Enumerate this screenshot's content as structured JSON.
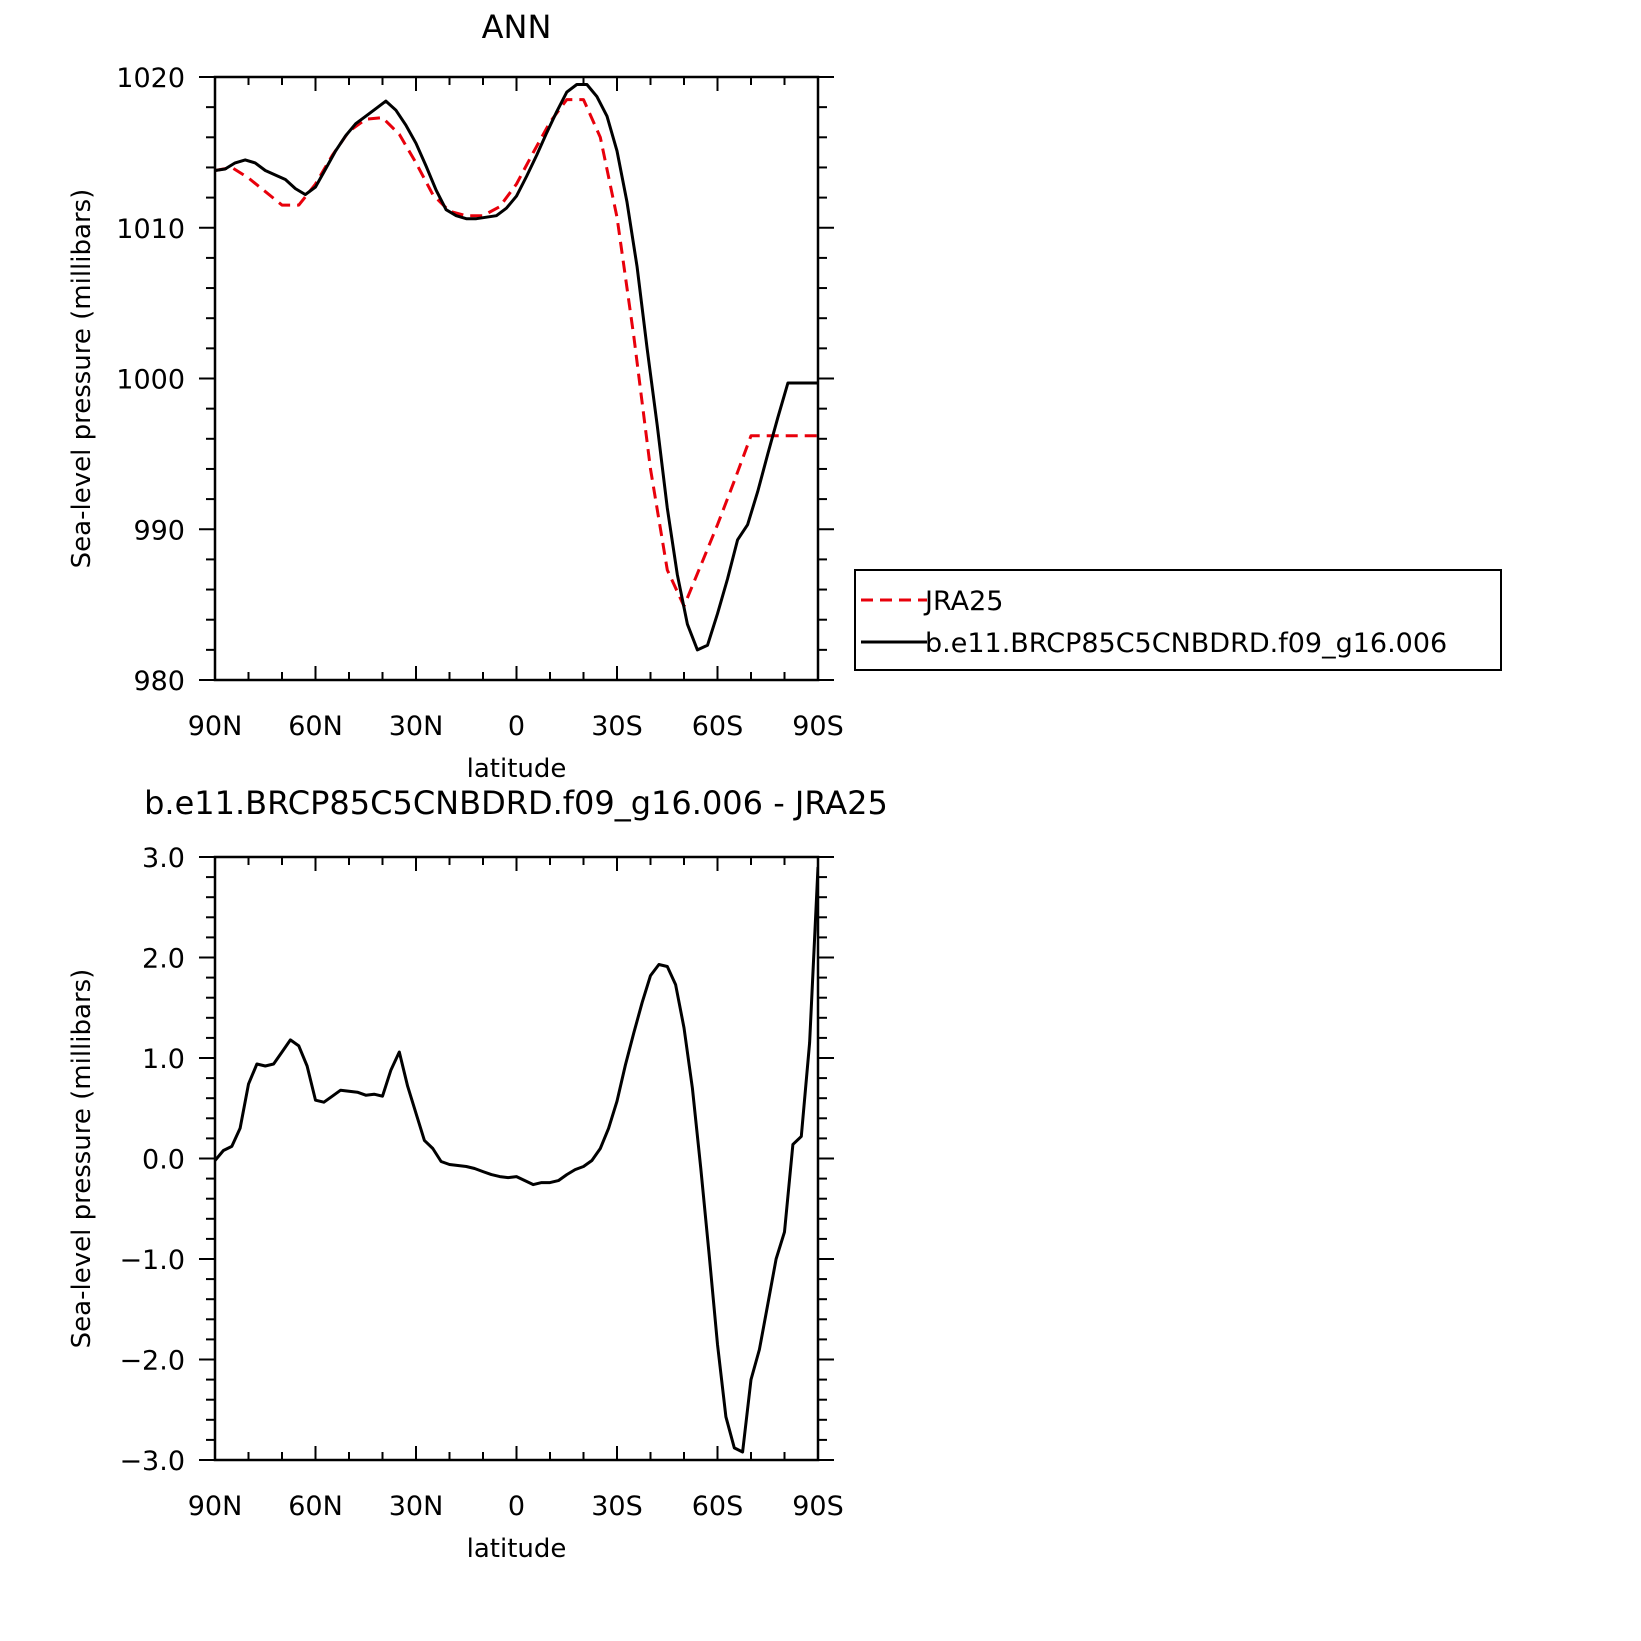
{
  "chart_data": [
    {
      "type": "line",
      "title": "ANN",
      "xlabel": "latitude",
      "ylabel": "Sea-level pressure (millibars)",
      "xlim": [
        90,
        -90
      ],
      "ylim": [
        980,
        1020
      ],
      "x_ticks": [
        {
          "value": 90,
          "label": "90N"
        },
        {
          "value": 60,
          "label": "60N"
        },
        {
          "value": 30,
          "label": "30N"
        },
        {
          "value": 0,
          "label": "0"
        },
        {
          "value": -30,
          "label": "30S"
        },
        {
          "value": -60,
          "label": "60S"
        },
        {
          "value": -90,
          "label": "90S"
        }
      ],
      "y_ticks": [
        {
          "value": 1020,
          "label": "1020"
        },
        {
          "value": 1010,
          "label": "1010"
        },
        {
          "value": 1000,
          "label": "1000"
        },
        {
          "value": 990,
          "label": "990"
        },
        {
          "value": 980,
          "label": "980"
        }
      ],
      "legend_position": "right",
      "series": [
        {
          "name": "JRA25",
          "color": "#e8000b",
          "dash": "dashed",
          "x": [
            90,
            85,
            80,
            75,
            70,
            65,
            60,
            55,
            50,
            45,
            40,
            35,
            30,
            25,
            20,
            15,
            10,
            5,
            0,
            -5,
            -10,
            -15,
            -20,
            -25,
            -30,
            -35,
            -40,
            -45,
            -50,
            -55,
            -60,
            -65,
            -70,
            -75,
            -80,
            -85,
            -90
          ],
          "y": [
            1013.8,
            1014.0,
            1013.3,
            1012.4,
            1011.5,
            1011.5,
            1012.9,
            1014.8,
            1016.4,
            1017.2,
            1017.3,
            1016.2,
            1014.3,
            1012.2,
            1011.1,
            1010.8,
            1010.8,
            1011.4,
            1012.9,
            1015.0,
            1017.0,
            1018.5,
            1018.5,
            1016.0,
            1010.7,
            1002.8,
            994.0,
            987.3,
            984.9,
            987.6,
            990.3,
            993.2,
            996.2,
            996.2,
            996.2,
            996.2,
            996.2
          ]
        },
        {
          "name": "b.e11.BRCP85C5CNBDRD.f09_g16.006",
          "color": "#000000",
          "dash": "solid",
          "x": [
            90,
            87,
            84,
            81,
            78,
            75,
            72,
            69,
            66,
            63,
            60,
            57,
            54,
            51,
            48,
            45,
            42,
            39,
            36,
            33,
            30,
            27,
            24,
            21,
            18,
            15,
            12,
            9,
            6,
            3,
            0,
            -3,
            -6,
            -9,
            -12,
            -15,
            -18,
            -21,
            -24,
            -27,
            -30,
            -33,
            -36,
            -39,
            -42,
            -45,
            -48,
            -51,
            -54,
            -57,
            -60,
            -63,
            -66,
            -69,
            -72,
            -75,
            -78,
            -81,
            -84,
            -87,
            -90
          ],
          "y": [
            1013.8,
            1013.9,
            1014.3,
            1014.5,
            1014.3,
            1013.8,
            1013.5,
            1013.2,
            1012.6,
            1012.2,
            1012.7,
            1013.9,
            1015.1,
            1016.1,
            1016.9,
            1017.4,
            1017.9,
            1018.4,
            1017.8,
            1016.8,
            1015.6,
            1014.1,
            1012.5,
            1011.2,
            1010.8,
            1010.6,
            1010.6,
            1010.7,
            1010.8,
            1011.3,
            1012.1,
            1013.4,
            1014.8,
            1016.3,
            1017.7,
            1019.0,
            1019.5,
            1019.5,
            1018.7,
            1017.4,
            1015.1,
            1011.7,
            1007.4,
            1002.0,
            996.9,
            991.4,
            987.0,
            983.7,
            982.0,
            982.3,
            984.4,
            986.7,
            989.3,
            990.3,
            992.5,
            995.0,
            997.4,
            999.7,
            999.7,
            999.7,
            999.7
          ]
        }
      ]
    },
    {
      "type": "line",
      "title": "b.e11.BRCP85C5CNBDRD.f09_g16.006 - JRA25",
      "xlabel": "latitude",
      "ylabel": "Sea-level pressure (millibars)",
      "xlim": [
        90,
        -90
      ],
      "ylim": [
        -3.0,
        3.0
      ],
      "x_ticks": [
        {
          "value": 90,
          "label": "90N"
        },
        {
          "value": 60,
          "label": "60N"
        },
        {
          "value": 30,
          "label": "30N"
        },
        {
          "value": 0,
          "label": "0"
        },
        {
          "value": -30,
          "label": "30S"
        },
        {
          "value": -60,
          "label": "60S"
        },
        {
          "value": -90,
          "label": "90S"
        }
      ],
      "y_ticks": [
        {
          "value": 3.0,
          "label": "3.0"
        },
        {
          "value": 2.0,
          "label": "2.0"
        },
        {
          "value": 1.0,
          "label": "1.0"
        },
        {
          "value": 0.0,
          "label": "0.0"
        },
        {
          "value": -1.0,
          "label": "−1.0"
        },
        {
          "value": -2.0,
          "label": "−2.0"
        },
        {
          "value": -3.0,
          "label": "−3.0"
        }
      ],
      "series": [
        {
          "name": "",
          "color": "#000000",
          "dash": "solid",
          "x": [
            90,
            87.5,
            85,
            82.5,
            80,
            77.5,
            75,
            72.5,
            70,
            67.5,
            65,
            62.5,
            60,
            57.5,
            55,
            52.5,
            50,
            47.5,
            45,
            42.5,
            40,
            37.5,
            35,
            32.5,
            30,
            27.5,
            25,
            22.5,
            20,
            17.5,
            15,
            12.5,
            10,
            7.5,
            5,
            2.5,
            0,
            -2.5,
            -5,
            -7.5,
            -10,
            -12.5,
            -15,
            -17.5,
            -20,
            -22.5,
            -25,
            -27.5,
            -30,
            -32.5,
            -35,
            -37.5,
            -40,
            -42.5,
            -45,
            -47.5,
            -50,
            -52.5,
            -55,
            -57.5,
            -60,
            -62.5,
            -65,
            -67.5,
            -70,
            -72.5,
            -75,
            -77.5,
            -80,
            -82.5,
            -85,
            -87.5,
            -90
          ],
          "y": [
            -0.02,
            0.08,
            0.12,
            0.3,
            0.74,
            0.94,
            0.92,
            0.94,
            1.06,
            1.18,
            1.12,
            0.92,
            0.58,
            0.56,
            0.62,
            0.68,
            0.67,
            0.66,
            0.63,
            0.64,
            0.62,
            0.88,
            1.06,
            0.72,
            0.45,
            0.18,
            0.1,
            -0.03,
            -0.06,
            -0.07,
            -0.08,
            -0.1,
            -0.13,
            -0.16,
            -0.18,
            -0.19,
            -0.18,
            -0.22,
            -0.26,
            -0.24,
            -0.24,
            -0.22,
            -0.16,
            -0.11,
            -0.08,
            -0.02,
            0.1,
            0.3,
            0.57,
            0.93,
            1.25,
            1.55,
            1.82,
            1.93,
            1.91,
            1.73,
            1.3,
            0.7,
            -0.1,
            -0.95,
            -1.85,
            -2.57,
            -2.88,
            -2.92,
            -2.2,
            -1.9,
            -1.45,
            -1.0,
            -0.73,
            0.14,
            0.22,
            1.15,
            2.9
          ]
        }
      ]
    }
  ]
}
